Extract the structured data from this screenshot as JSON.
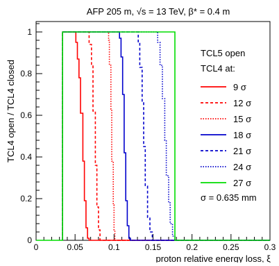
{
  "chart_data": {
    "type": "line",
    "title": "AFP 205 m, √s = 13 TeV, β* = 0.4 m",
    "xlabel": "proton relative energy loss, ξ",
    "ylabel": "TCL4 open / TCL4 closed",
    "xlim": [
      0,
      0.3
    ],
    "ylim": [
      0,
      1.05
    ],
    "x_ticks": [
      "0",
      "0.05",
      "0.1",
      "0.15",
      "0.2",
      "0.25",
      "0.3"
    ],
    "x_tick_values": [
      0,
      0.05,
      0.1,
      0.15,
      0.2,
      0.25,
      0.3
    ],
    "y_ticks": [
      "0",
      "0.2",
      "0.4",
      "0.6",
      "0.8",
      "1"
    ],
    "y_tick_values": [
      0,
      0.2,
      0.4,
      0.6,
      0.8,
      1.0
    ],
    "grid": false,
    "legend_position": "right",
    "legend_header": [
      "TCL5 open",
      "TCL4 at:"
    ],
    "annotation": "σ = 0.635 mm",
    "series": [
      {
        "name": "9 σ",
        "color": "#ff0000",
        "dash": "solid",
        "points": [
          [
            0.034,
            0
          ],
          [
            0.034,
            1.0
          ],
          [
            0.051,
            1.0
          ],
          [
            0.051,
            0.95
          ],
          [
            0.053,
            0.95
          ],
          [
            0.053,
            0.87
          ],
          [
            0.055,
            0.87
          ],
          [
            0.055,
            0.78
          ],
          [
            0.057,
            0.78
          ],
          [
            0.057,
            0.61
          ],
          [
            0.06,
            0.61
          ],
          [
            0.06,
            0.38
          ],
          [
            0.062,
            0.38
          ],
          [
            0.062,
            0.19
          ],
          [
            0.064,
            0.19
          ],
          [
            0.064,
            0.06
          ],
          [
            0.066,
            0.06
          ],
          [
            0.066,
            0.01
          ],
          [
            0.068,
            0.01
          ],
          [
            0.068,
            0
          ],
          [
            0.3,
            0
          ]
        ]
      },
      {
        "name": "12 σ",
        "color": "#ff0000",
        "dash": "dashed",
        "points": [
          [
            0.034,
            0
          ],
          [
            0.034,
            1.0
          ],
          [
            0.068,
            1.0
          ],
          [
            0.068,
            0.94
          ],
          [
            0.071,
            0.94
          ],
          [
            0.071,
            0.84
          ],
          [
            0.073,
            0.84
          ],
          [
            0.073,
            0.62
          ],
          [
            0.076,
            0.62
          ],
          [
            0.076,
            0.36
          ],
          [
            0.078,
            0.36
          ],
          [
            0.078,
            0.16
          ],
          [
            0.08,
            0.16
          ],
          [
            0.08,
            0.05
          ],
          [
            0.082,
            0.05
          ],
          [
            0.082,
            0
          ],
          [
            0.3,
            0
          ]
        ]
      },
      {
        "name": "15 σ",
        "color": "#ff0000",
        "dash": "dotted",
        "points": [
          [
            0.034,
            0
          ],
          [
            0.034,
            1.0
          ],
          [
            0.093,
            1.0
          ],
          [
            0.093,
            0.96
          ],
          [
            0.094,
            0.96
          ],
          [
            0.094,
            0.84
          ],
          [
            0.096,
            0.84
          ],
          [
            0.096,
            0.63
          ],
          [
            0.097,
            0.63
          ],
          [
            0.097,
            0.38
          ],
          [
            0.099,
            0.38
          ],
          [
            0.099,
            0.17
          ],
          [
            0.1,
            0.17
          ],
          [
            0.1,
            0.05
          ],
          [
            0.101,
            0.05
          ],
          [
            0.101,
            0
          ],
          [
            0.3,
            0
          ]
        ]
      },
      {
        "name": "18 σ",
        "color": "#0000cc",
        "dash": "solid",
        "points": [
          [
            0.034,
            0
          ],
          [
            0.034,
            1.0
          ],
          [
            0.107,
            1.0
          ],
          [
            0.107,
            0.97
          ],
          [
            0.109,
            0.97
          ],
          [
            0.109,
            0.88
          ],
          [
            0.111,
            0.88
          ],
          [
            0.111,
            0.7
          ],
          [
            0.113,
            0.7
          ],
          [
            0.113,
            0.42
          ],
          [
            0.115,
            0.42
          ],
          [
            0.115,
            0.19
          ],
          [
            0.117,
            0.19
          ],
          [
            0.117,
            0.07
          ],
          [
            0.119,
            0.07
          ],
          [
            0.119,
            0.01
          ],
          [
            0.121,
            0.01
          ],
          [
            0.121,
            0
          ],
          [
            0.3,
            0
          ]
        ]
      },
      {
        "name": "21 σ",
        "color": "#0000cc",
        "dash": "dashed",
        "points": [
          [
            0.034,
            0
          ],
          [
            0.034,
            1.0
          ],
          [
            0.131,
            1.0
          ],
          [
            0.131,
            0.95
          ],
          [
            0.133,
            0.95
          ],
          [
            0.133,
            0.83
          ],
          [
            0.136,
            0.83
          ],
          [
            0.136,
            0.66
          ],
          [
            0.138,
            0.66
          ],
          [
            0.138,
            0.45
          ],
          [
            0.14,
            0.45
          ],
          [
            0.14,
            0.26
          ],
          [
            0.143,
            0.26
          ],
          [
            0.143,
            0.11
          ],
          [
            0.146,
            0.11
          ],
          [
            0.146,
            0.04
          ],
          [
            0.149,
            0.04
          ],
          [
            0.149,
            0
          ],
          [
            0.3,
            0
          ]
        ]
      },
      {
        "name": "24 σ",
        "color": "#0000cc",
        "dash": "dotted",
        "points": [
          [
            0.034,
            0
          ],
          [
            0.034,
            1.0
          ],
          [
            0.156,
            1.0
          ],
          [
            0.156,
            0.95
          ],
          [
            0.159,
            0.95
          ],
          [
            0.159,
            0.84
          ],
          [
            0.162,
            0.84
          ],
          [
            0.162,
            0.68
          ],
          [
            0.165,
            0.68
          ],
          [
            0.165,
            0.48
          ],
          [
            0.167,
            0.48
          ],
          [
            0.167,
            0.31
          ],
          [
            0.17,
            0.31
          ],
          [
            0.17,
            0.18
          ],
          [
            0.172,
            0.18
          ],
          [
            0.172,
            0.08
          ],
          [
            0.175,
            0.08
          ],
          [
            0.175,
            0.02
          ],
          [
            0.178,
            0.02
          ],
          [
            0.178,
            0
          ],
          [
            0.3,
            0
          ]
        ]
      },
      {
        "name": "27 σ",
        "color": "#00dd00",
        "dash": "solid",
        "points": [
          [
            0.0,
            0
          ],
          [
            0.034,
            0
          ],
          [
            0.034,
            1.0
          ],
          [
            0.178,
            1.0
          ],
          [
            0.178,
            0
          ],
          [
            0.3,
            0
          ]
        ]
      }
    ]
  }
}
